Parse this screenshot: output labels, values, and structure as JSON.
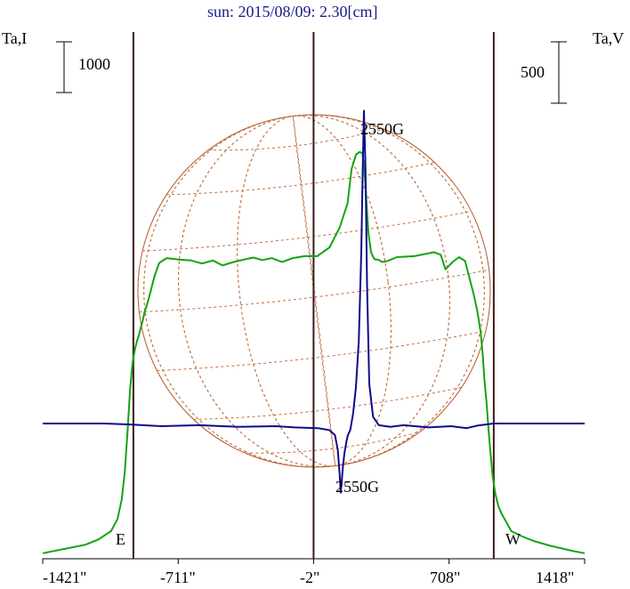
{
  "chart_data": {
    "type": "line",
    "title": "sun: 2015/08/09: 2.30[cm]",
    "ylabel_left": "Ta,I",
    "ylabel_right": "Ta,V",
    "scale_left": "1000",
    "scale_right": "500",
    "xlim": [
      -1421,
      1418
    ],
    "xticks": [
      -1421,
      -711,
      -2,
      708,
      1418
    ],
    "xtick_labels": [
      "-1421\"",
      "-711\"",
      "-2\"",
      "708\"",
      "1418\""
    ],
    "limb_lines": [
      -946,
      -2,
      942
    ],
    "limb_labels": [
      "E",
      "W"
    ],
    "grid": false,
    "annotations": {
      "peak": "2550G",
      "dip": "2550G"
    },
    "series": [
      {
        "color": "#13a313",
        "axis": "left",
        "x": [
          -1421,
          -1200,
          -1130,
          -1063,
          -1029,
          -1007,
          -991,
          -977,
          -963,
          -950,
          -936,
          -926,
          -916,
          -906,
          -897,
          -887,
          -877,
          -862,
          -846,
          -832,
          -811,
          -796,
          -771,
          -708,
          -643,
          -587,
          -529,
          -479,
          -421,
          -368,
          -317,
          -271,
          -221,
          -167,
          -111,
          -49,
          17,
          82,
          134,
          176,
          197,
          221,
          240,
          254,
          264,
          285,
          299,
          313,
          323,
          337,
          358,
          384,
          435,
          526,
          629,
          664,
          689,
          726,
          760,
          792,
          813,
          836,
          856,
          874,
          884,
          893,
          904,
          914,
          925,
          937,
          951,
          967,
          984,
          1006,
          1034,
          1087,
          1150,
          1240,
          1350,
          1418
        ],
        "y": [
          -25,
          -8,
          3,
          20,
          45,
          85,
          140,
          220,
          310,
          365,
          395,
          410,
          422,
          438,
          450,
          468,
          480,
          500,
          525,
          545,
          568,
          572,
          578,
          575,
          573,
          567,
          573,
          563,
          570,
          575,
          579,
          574,
          578,
          570,
          578,
          582,
          582,
          600,
          640,
          690,
          760,
          790,
          795,
          792,
          760,
          630,
          590,
          578,
          575,
          575,
          570,
          572,
          580,
          582,
          590,
          585,
          555,
          570,
          580,
          572,
          540,
          505,
          470,
          425,
          380,
          330,
          285,
          230,
          180,
          130,
          95,
          70,
          55,
          40,
          20,
          10,
          0,
          -10,
          -20,
          -25
        ]
      },
      {
        "color": "#0c0c8c",
        "axis": "right",
        "x": [
          -1421,
          -1100,
          -960,
          -800,
          -600,
          -400,
          -200,
          -100,
          20,
          80,
          110,
          125,
          134,
          140,
          145,
          152,
          160,
          170,
          178,
          190,
          205,
          220,
          235,
          248,
          256,
          262,
          270,
          278,
          290,
          310,
          340,
          400,
          470,
          600,
          720,
          800,
          860,
          940,
          1000,
          1100,
          1200,
          1300,
          1418
        ],
        "y": [
          0,
          0,
          -3,
          -8,
          -5,
          -10,
          -8,
          -12,
          -14,
          -20,
          -35,
          -80,
          -150,
          -210,
          -180,
          -130,
          -90,
          -55,
          -35,
          -20,
          30,
          110,
          250,
          520,
          780,
          950,
          780,
          420,
          120,
          20,
          -5,
          -10,
          -5,
          -12,
          -8,
          -14,
          -6,
          0,
          0,
          0,
          0,
          0,
          0
        ]
      }
    ]
  }
}
